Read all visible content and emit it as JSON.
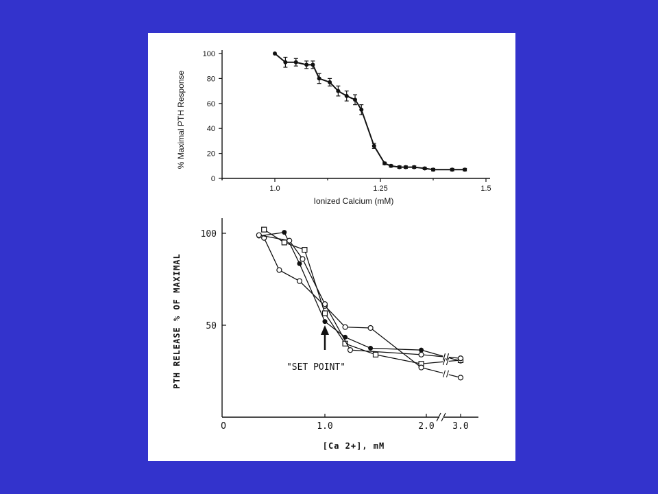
{
  "background_color": "#3333cc",
  "panel_color": "#ffffff",
  "chart_data": [
    {
      "type": "line",
      "title": "",
      "xlabel": "Ionized Calcium (mM)",
      "ylabel": "% Maximal PTH Response",
      "xlim": [
        0.75,
        1.5
      ],
      "ylim": [
        0,
        100
      ],
      "x_ticks": [
        {
          "value": 1.0,
          "label": "1.0"
        },
        {
          "value": 1.25,
          "label": "1.25"
        },
        {
          "value": 1.5,
          "label": "1.5"
        }
      ],
      "y_ticks": [
        {
          "value": 0,
          "label": "0"
        },
        {
          "value": 20,
          "label": "20"
        },
        {
          "value": 40,
          "label": "40"
        },
        {
          "value": 60,
          "label": "60"
        },
        {
          "value": 80,
          "label": "80"
        },
        {
          "value": 100,
          "label": "100"
        }
      ],
      "series": [
        {
          "x": [
            1.0,
            1.025,
            1.05,
            1.075,
            1.09,
            1.105,
            1.13,
            1.15,
            1.17,
            1.19,
            1.205,
            1.235,
            1.26,
            1.275,
            1.295,
            1.31,
            1.33,
            1.355,
            1.375,
            1.42,
            1.45
          ],
          "y": [
            100,
            93,
            93,
            91,
            91,
            80,
            77,
            70,
            66,
            63,
            55,
            26,
            12,
            10,
            9,
            9,
            9,
            8,
            7,
            7,
            7
          ],
          "error": [
            0,
            4,
            3,
            3,
            3,
            4,
            3,
            4,
            4,
            4,
            4,
            2,
            1,
            1,
            1,
            1,
            1,
            1,
            1,
            1,
            1
          ]
        }
      ]
    },
    {
      "type": "line",
      "title": "",
      "xlabel": "[Ca 2+], mM",
      "ylabel": "PTH RELEASE % OF MAXIMAL",
      "annotation": "\"SET POINT\"",
      "x_ticks": [
        {
          "value": 0,
          "label": "O"
        },
        {
          "value": 1.0,
          "label": "1.0"
        },
        {
          "value": 2.0,
          "label": "2.0"
        },
        {
          "value": 3.0,
          "label": "3.0"
        }
      ],
      "y_ticks": [
        {
          "value": 50,
          "label": "50"
        },
        {
          "value": 100,
          "label": "100"
        }
      ],
      "ylim": [
        0,
        112
      ],
      "axis_break_between": [
        2.0,
        3.0
      ],
      "series": [
        {
          "marker": "filled-circle",
          "x": [
            0.35,
            0.6,
            0.75,
            1.0,
            1.2,
            1.45,
            1.95,
            3.0
          ],
          "y": [
            98.5,
            100.5,
            83.5,
            52,
            43.5,
            37.5,
            36.5,
            30.5
          ]
        },
        {
          "marker": "open-square",
          "x": [
            0.4,
            0.6,
            0.8,
            1.0,
            1.2,
            1.5,
            1.95,
            3.0
          ],
          "y": [
            102,
            95,
            91,
            56.5,
            40,
            34,
            29,
            31
          ]
        },
        {
          "marker": "open-circle",
          "x": [
            0.4,
            0.55,
            0.75,
            1.0,
            1.2,
            1.45,
            1.95,
            3.0
          ],
          "y": [
            97.5,
            80,
            74,
            60.5,
            49,
            48.5,
            27,
            21.5
          ]
        },
        {
          "marker": "open-circle",
          "x": [
            0.35,
            0.65,
            0.78,
            1.0,
            1.25,
            1.95,
            3.0
          ],
          "y": [
            99,
            96,
            86,
            61.5,
            36.5,
            34,
            32
          ]
        }
      ]
    }
  ]
}
